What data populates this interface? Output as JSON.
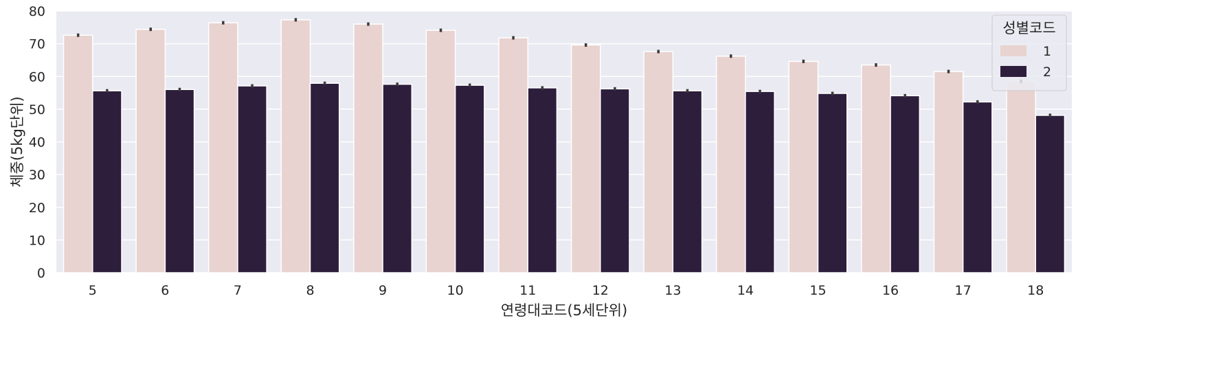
{
  "chart_data": {
    "type": "bar",
    "title": "",
    "xlabel": "연령대코드(5세단위)",
    "ylabel": "체중(5kg단위)",
    "categories": [
      "5",
      "6",
      "7",
      "8",
      "9",
      "10",
      "11",
      "12",
      "13",
      "14",
      "15",
      "16",
      "17",
      "18"
    ],
    "ylim": [
      0,
      80
    ],
    "yticks": [
      0,
      10,
      20,
      30,
      40,
      50,
      60,
      70,
      80
    ],
    "grid": true,
    "legend": {
      "title": "성별코드",
      "placement": "top-right"
    },
    "series": [
      {
        "name": "1",
        "color": "#e8d3d0",
        "values": [
          72.6,
          74.4,
          76.4,
          77.3,
          76.0,
          74.1,
          71.8,
          69.6,
          67.6,
          66.2,
          64.6,
          63.5,
          61.5,
          58.5
        ]
      },
      {
        "name": "2",
        "color": "#2d1e3c",
        "values": [
          55.6,
          56.0,
          57.1,
          57.9,
          57.6,
          57.3,
          56.5,
          56.2,
          55.6,
          55.4,
          54.8,
          54.1,
          52.2,
          48.1
        ]
      }
    ],
    "error_bar_color": "#3b3b3b",
    "background_color": "#eaeaf2",
    "grid_color": "#ffffff"
  }
}
